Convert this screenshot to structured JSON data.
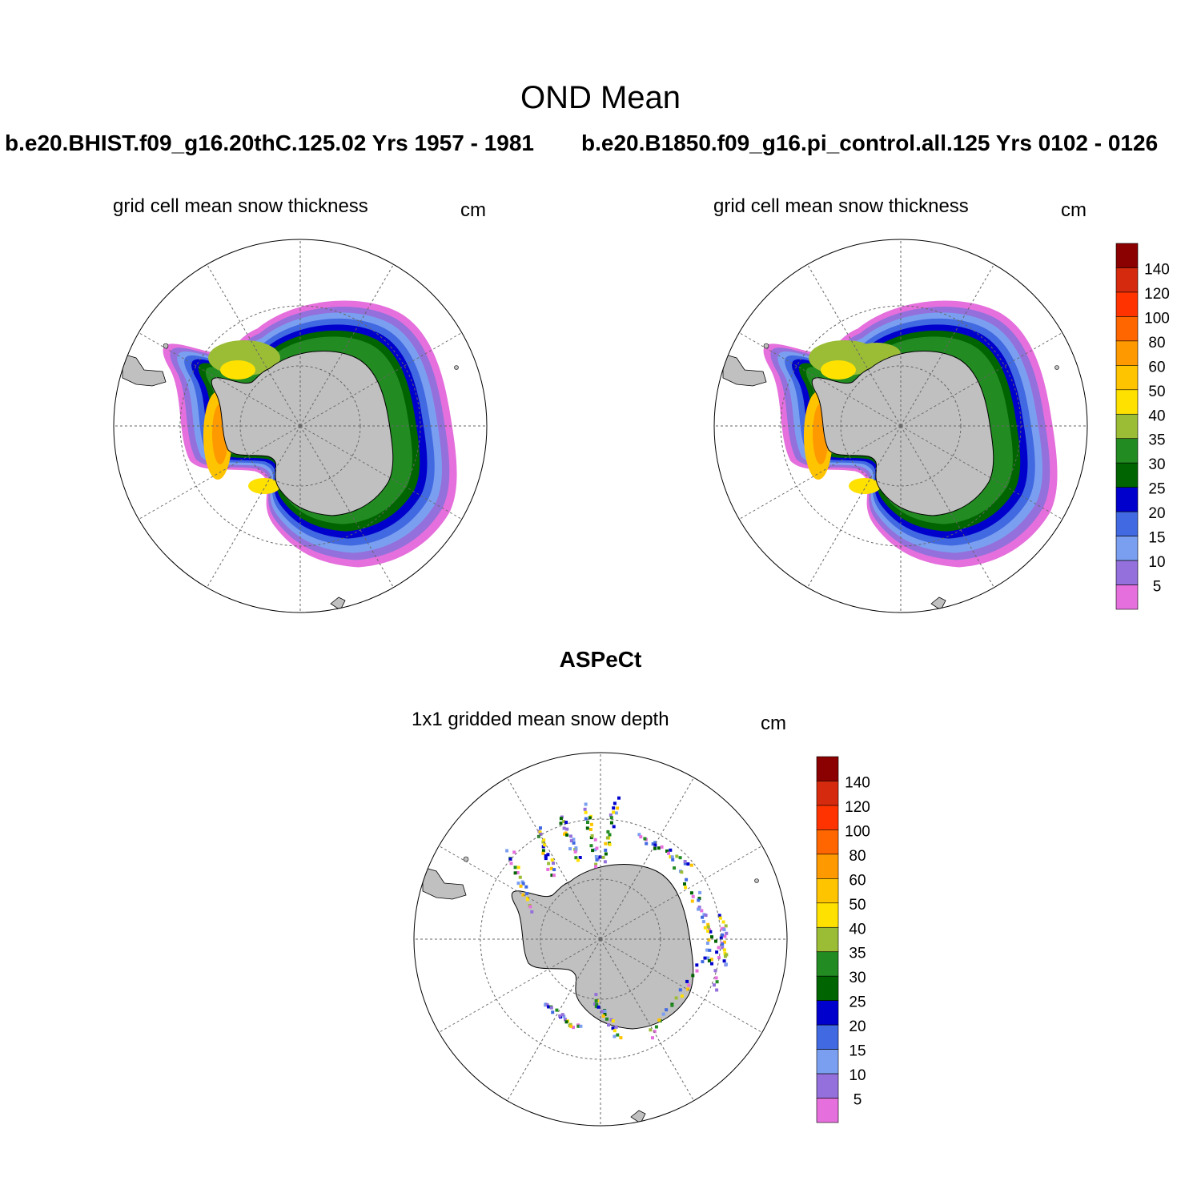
{
  "figure": {
    "title": "OND Mean",
    "panels": [
      {
        "case": "b.e20.BHIST.f09_g16.20thC.125.02  Yrs 1957 - 1981",
        "subtitle": "grid cell mean snow thickness",
        "units": "cm"
      },
      {
        "case": "b.e20.B1850.f09_g16.pi_control.all.125  Yrs 0102 - 0126",
        "subtitle": "grid cell mean snow thickness",
        "units": "cm"
      },
      {
        "case": "ASPeCt",
        "subtitle": "1x1 gridded mean snow depth",
        "units": "cm"
      }
    ]
  },
  "colorbar": {
    "labels": [
      "140",
      "120",
      "100",
      "80",
      "60",
      "50",
      "40",
      "35",
      "30",
      "25",
      "20",
      "15",
      "10",
      "5"
    ],
    "colors": [
      "#8b0000",
      "#d52a0d",
      "#ff3300",
      "#ff6600",
      "#ff9900",
      "#ffc400",
      "#ffe100",
      "#9bbd36",
      "#228b22",
      "#006400",
      "#0000cd",
      "#4169e1",
      "#7b9ff0",
      "#9370db",
      "#e56fdc"
    ]
  },
  "palette": {
    "land": "#c0c0c0",
    "ocean": "#ffffff"
  }
}
